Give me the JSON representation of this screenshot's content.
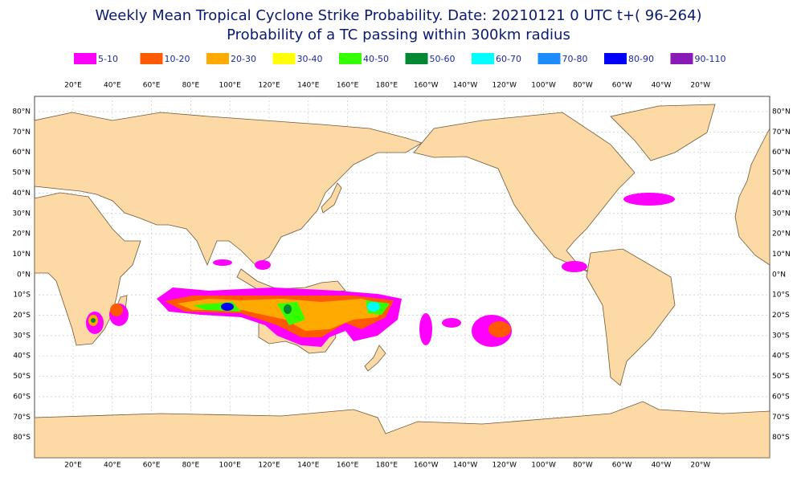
{
  "header": {
    "title": "Weekly Mean Tropical Cyclone Strike Probability. Date: 20210121  0 UTC   t+( 96-264)",
    "subtitle": "Probability of a TC passing within  300km radius"
  },
  "legend": [
    {
      "label": "5-10",
      "color": "#ff00ff"
    },
    {
      "label": "10-20",
      "color": "#ff5a00"
    },
    {
      "label": "20-30",
      "color": "#ffaa00"
    },
    {
      "label": "30-40",
      "color": "#ffff00"
    },
    {
      "label": "40-50",
      "color": "#33ff00"
    },
    {
      "label": "50-60",
      "color": "#008833"
    },
    {
      "label": "60-70",
      "color": "#00ffff"
    },
    {
      "label": "70-80",
      "color": "#1e8cff"
    },
    {
      "label": "80-90",
      "color": "#0000ff"
    },
    {
      "label": "90-110",
      "color": "#8a1ab8"
    }
  ],
  "longitude_labels": [
    "20°E",
    "40°E",
    "60°E",
    "80°E",
    "100°E",
    "120°E",
    "140°E",
    "160°E",
    "180°E",
    "160°W",
    "140°W",
    "120°W",
    "100°W",
    "80°W",
    "60°W",
    "40°W",
    "20°W"
  ],
  "latitude_labels": [
    "80°N",
    "70°N",
    "60°N",
    "50°N",
    "40°N",
    "30°N",
    "20°N",
    "10°N",
    "0°N",
    "10°S",
    "20°S",
    "30°S",
    "40°S",
    "50°S",
    "60°S",
    "70°S",
    "80°S"
  ]
}
